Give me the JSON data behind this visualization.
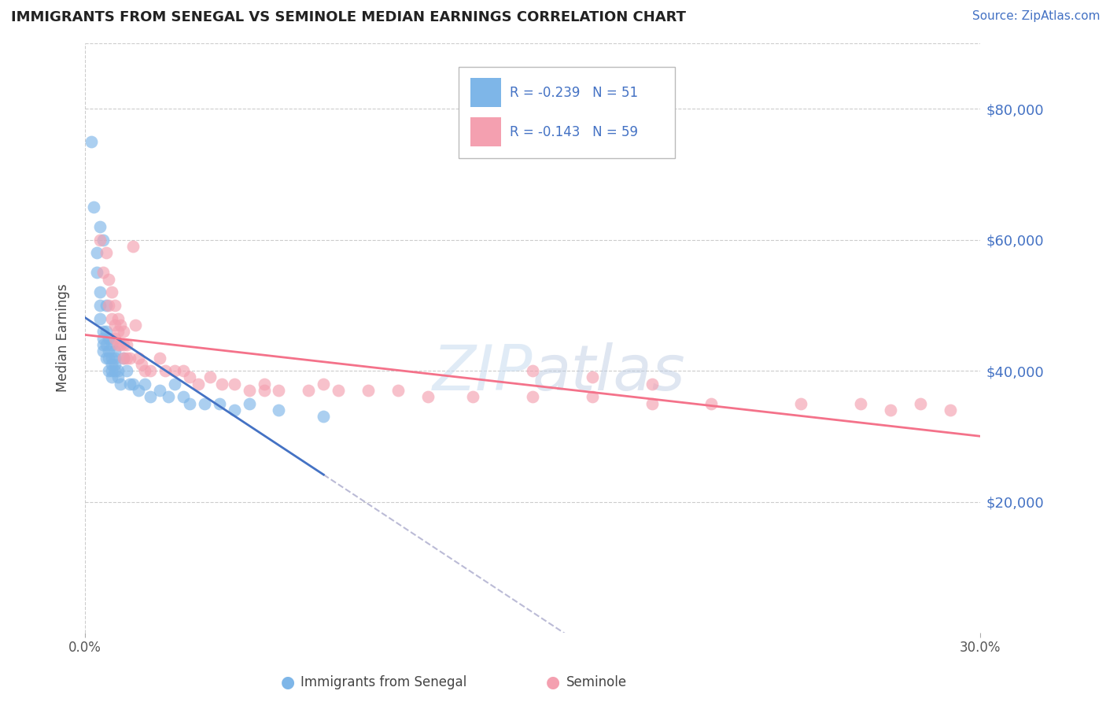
{
  "title": "IMMIGRANTS FROM SENEGAL VS SEMINOLE MEDIAN EARNINGS CORRELATION CHART",
  "source_text": "Source: ZipAtlas.com",
  "ylabel": "Median Earnings",
  "xlim": [
    0.0,
    0.3
  ],
  "ylim": [
    0,
    90000
  ],
  "yticks": [
    0,
    20000,
    40000,
    60000,
    80000
  ],
  "ytick_labels": [
    "",
    "$20,000",
    "$40,000",
    "$60,000",
    "$80,000"
  ],
  "xticks": [
    0.0,
    0.3
  ],
  "xtick_labels": [
    "0.0%",
    "30.0%"
  ],
  "color_blue": "#7EB6E8",
  "color_pink": "#F4A0B0",
  "color_blue_line": "#4472C4",
  "color_pink_line": "#F4728A",
  "color_dashed": "#AAAACC",
  "bottom_label1": "Immigrants from Senegal",
  "bottom_label2": "Seminole",
  "senegal_x": [
    0.002,
    0.003,
    0.004,
    0.004,
    0.005,
    0.005,
    0.005,
    0.005,
    0.006,
    0.006,
    0.006,
    0.006,
    0.006,
    0.007,
    0.007,
    0.007,
    0.007,
    0.008,
    0.008,
    0.008,
    0.008,
    0.009,
    0.009,
    0.009,
    0.009,
    0.009,
    0.01,
    0.01,
    0.01,
    0.01,
    0.011,
    0.011,
    0.012,
    0.013,
    0.014,
    0.015,
    0.016,
    0.018,
    0.02,
    0.022,
    0.025,
    0.028,
    0.03,
    0.033,
    0.035,
    0.04,
    0.045,
    0.05,
    0.055,
    0.065,
    0.08
  ],
  "senegal_y": [
    75000,
    65000,
    58000,
    55000,
    62000,
    52000,
    50000,
    48000,
    60000,
    46000,
    45000,
    44000,
    43000,
    50000,
    46000,
    44000,
    42000,
    45000,
    43000,
    42000,
    40000,
    44000,
    42000,
    41000,
    40000,
    39000,
    43000,
    42000,
    41000,
    40000,
    40000,
    39000,
    38000,
    42000,
    40000,
    38000,
    38000,
    37000,
    38000,
    36000,
    37000,
    36000,
    38000,
    36000,
    35000,
    35000,
    35000,
    34000,
    35000,
    34000,
    33000
  ],
  "seminole_x": [
    0.005,
    0.006,
    0.007,
    0.008,
    0.008,
    0.009,
    0.009,
    0.01,
    0.01,
    0.01,
    0.011,
    0.011,
    0.011,
    0.012,
    0.012,
    0.013,
    0.013,
    0.013,
    0.014,
    0.014,
    0.015,
    0.016,
    0.017,
    0.018,
    0.019,
    0.02,
    0.022,
    0.025,
    0.027,
    0.03,
    0.033,
    0.035,
    0.038,
    0.042,
    0.046,
    0.05,
    0.055,
    0.06,
    0.065,
    0.075,
    0.085,
    0.095,
    0.105,
    0.115,
    0.13,
    0.15,
    0.17,
    0.19,
    0.21,
    0.24,
    0.26,
    0.27,
    0.28,
    0.29,
    0.15,
    0.17,
    0.19,
    0.06,
    0.08
  ],
  "seminole_y": [
    60000,
    55000,
    58000,
    54000,
    50000,
    52000,
    48000,
    50000,
    47000,
    45000,
    48000,
    46000,
    44000,
    47000,
    44000,
    46000,
    44000,
    42000,
    44000,
    42000,
    42000,
    59000,
    47000,
    42000,
    41000,
    40000,
    40000,
    42000,
    40000,
    40000,
    40000,
    39000,
    38000,
    39000,
    38000,
    38000,
    37000,
    38000,
    37000,
    37000,
    37000,
    37000,
    37000,
    36000,
    36000,
    36000,
    36000,
    35000,
    35000,
    35000,
    35000,
    34000,
    35000,
    34000,
    40000,
    39000,
    38000,
    37000,
    38000
  ]
}
